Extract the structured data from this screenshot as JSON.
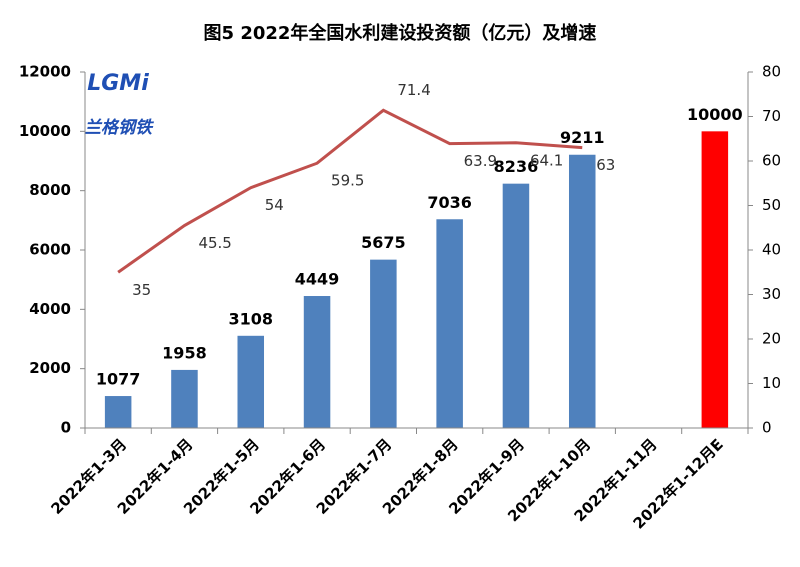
{
  "logo": {
    "mark": "LGMi",
    "name": "兰格钢铁"
  },
  "chart_data": {
    "type": "bar-line",
    "title": "图5 2022年全国水利建设投资额（亿元）及增速",
    "categories": [
      "2022年1-3月",
      "2022年1-4月",
      "2022年1-5月",
      "2022年1-6月",
      "2022年1-7月",
      "2022年1-8月",
      "2022年1-9月",
      "2022年1-10月",
      "2022年1-11月",
      "2022年1-12月E"
    ],
    "series": [
      {
        "type": "bar",
        "values": [
          1077,
          1958,
          3108,
          4449,
          5675,
          7036,
          8236,
          9211,
          null,
          10000
        ],
        "colors": [
          "#4f81bd",
          "#4f81bd",
          "#4f81bd",
          "#4f81bd",
          "#4f81bd",
          "#4f81bd",
          "#4f81bd",
          "#4f81bd",
          "#4f81bd",
          "#ff0000"
        ]
      },
      {
        "type": "line",
        "axis": "y2",
        "color": "#c0504d",
        "values": [
          35,
          45.5,
          54,
          59.5,
          71.4,
          63.9,
          64.1,
          63,
          null,
          null
        ]
      }
    ],
    "ylim": [
      0,
      12000
    ],
    "yticks": [
      0,
      2000,
      4000,
      6000,
      8000,
      10000,
      12000
    ],
    "y2lim": [
      0,
      80
    ],
    "y2ticks": [
      0,
      10,
      20,
      30,
      40,
      50,
      60,
      70,
      80
    ]
  }
}
